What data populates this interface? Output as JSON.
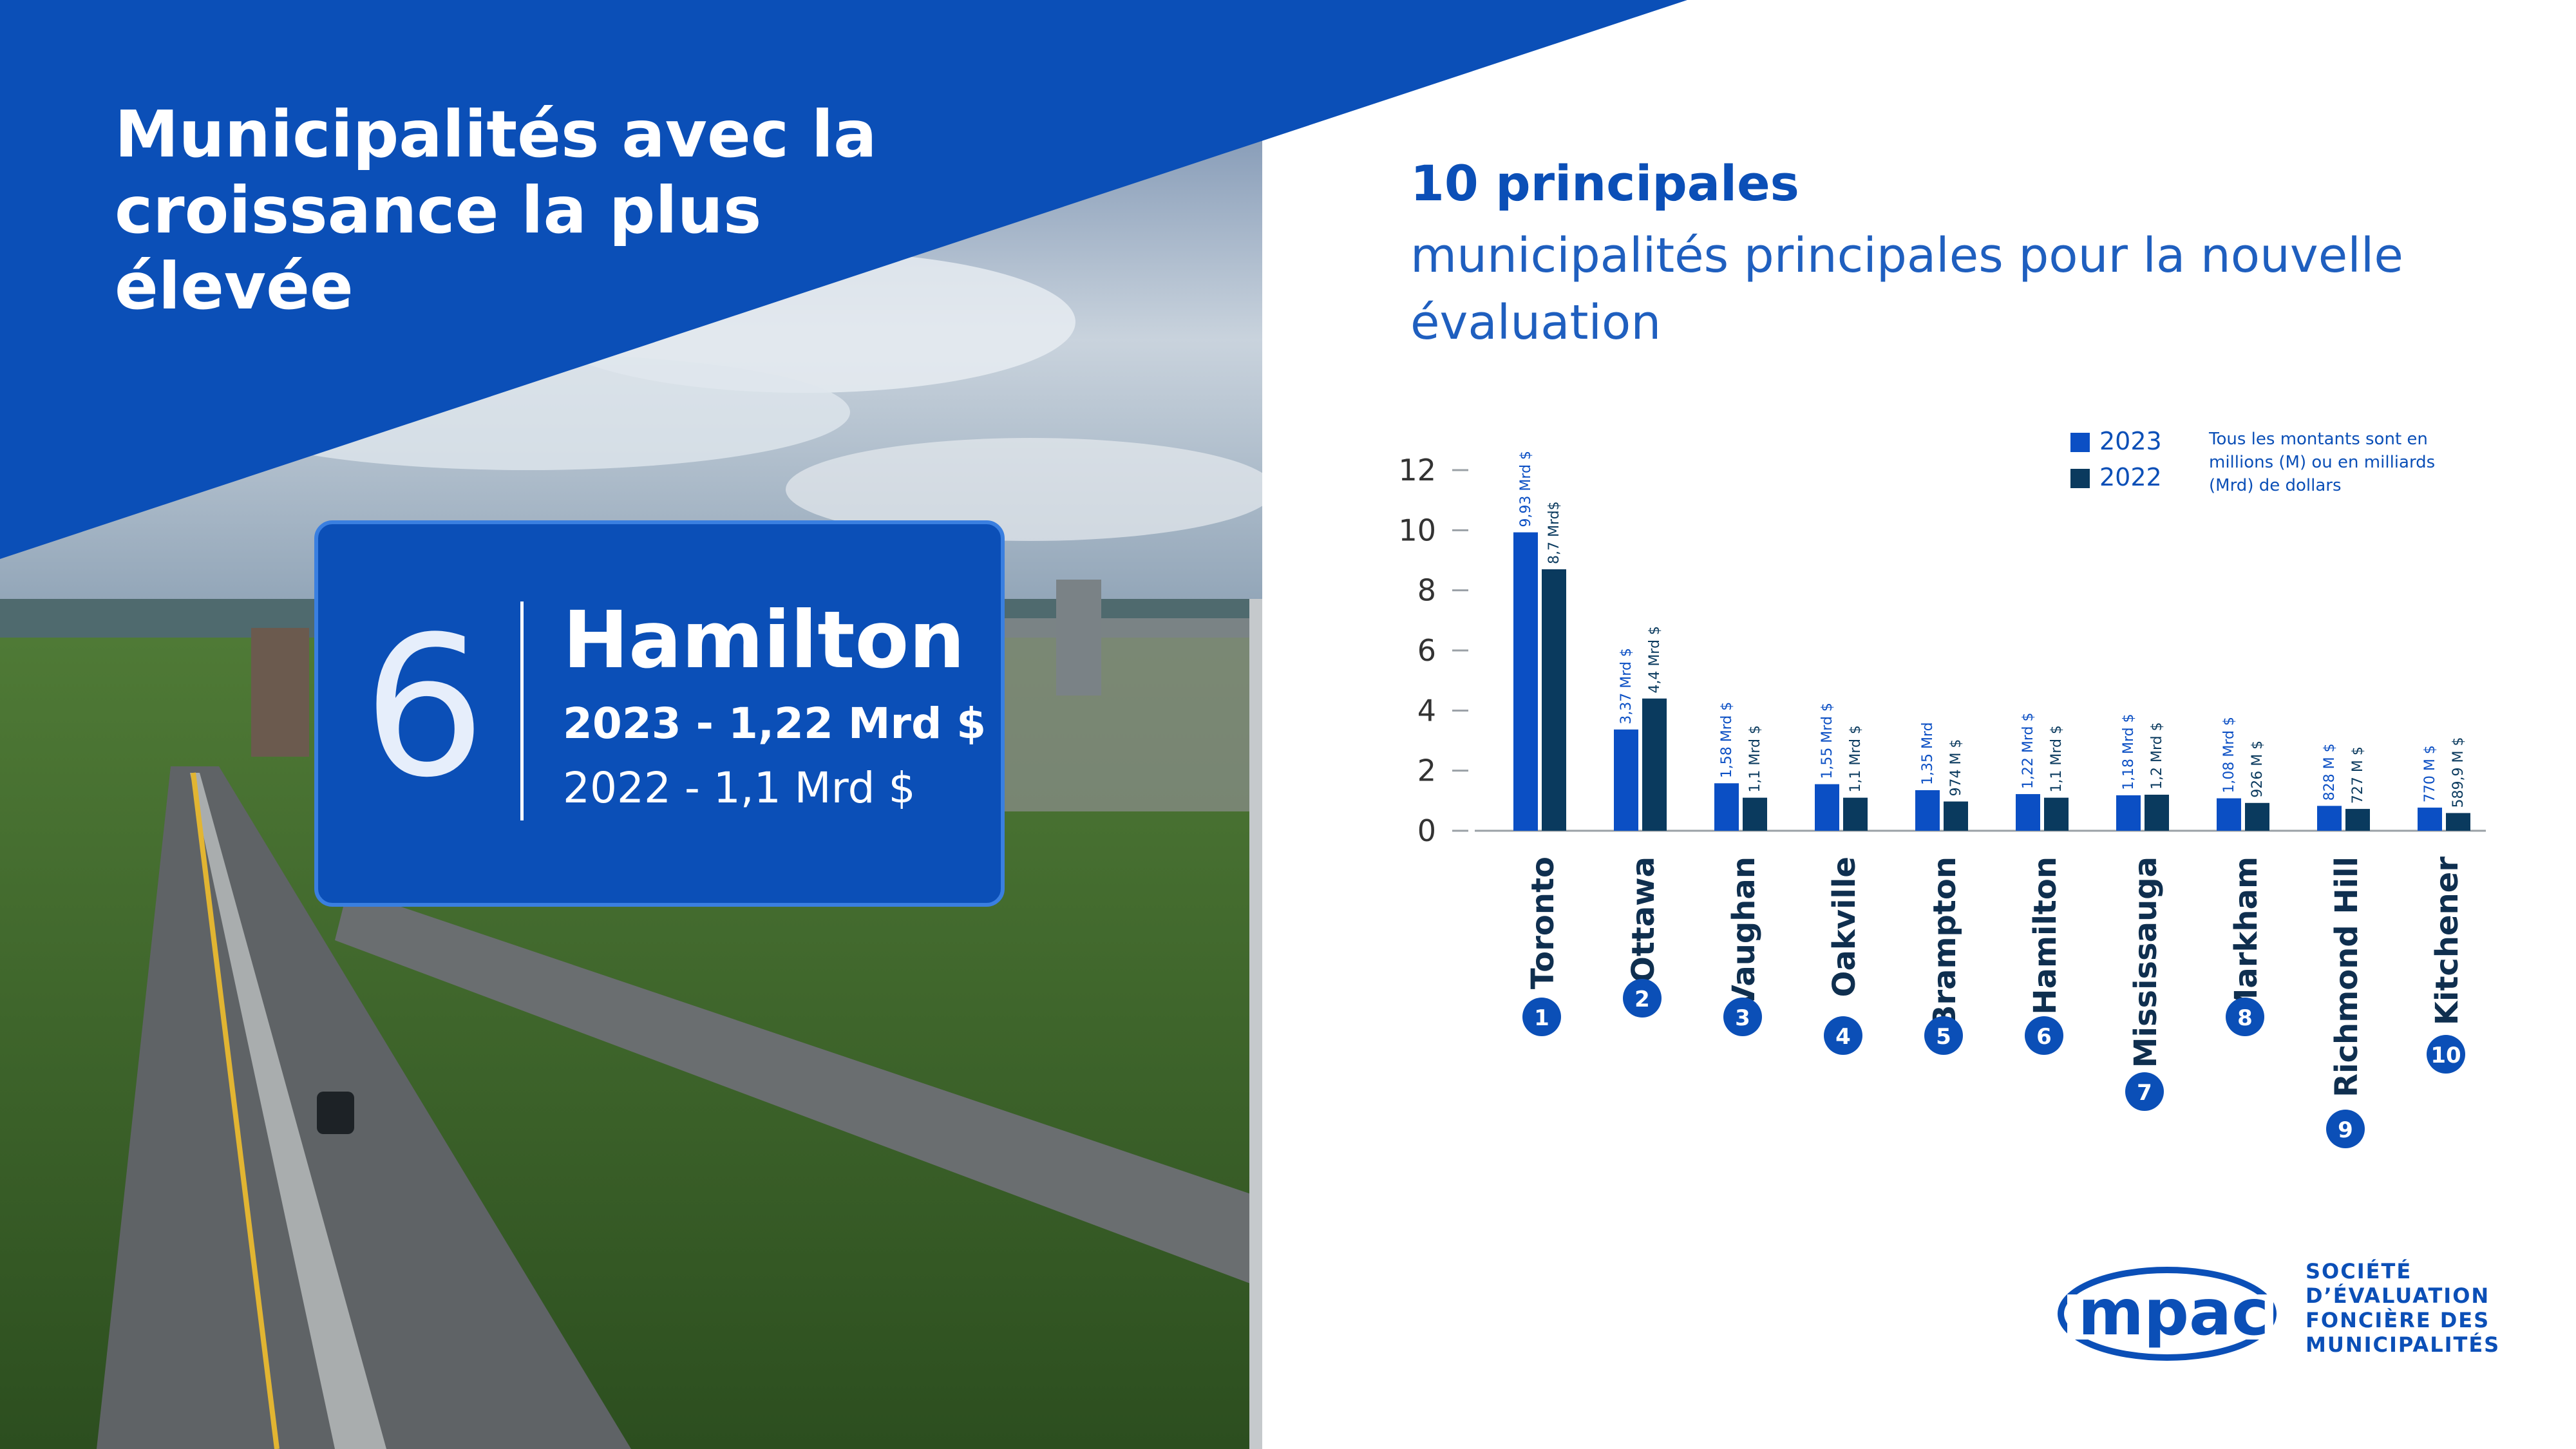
{
  "banner": {
    "title": "Municipalités avec la croissance la plus élevée"
  },
  "sign": {
    "rank": "6",
    "city": "Hamilton",
    "line_2023": "2023 - 1,22 Mrd $",
    "line_2022": "2022 - 1,1 Mrd $"
  },
  "heading": {
    "bold": "10 principales",
    "subtitle": "municipalités principales pour la nouvelle évaluation"
  },
  "legend": {
    "items": [
      "2023",
      "2022"
    ],
    "note": [
      "Tous les montants sont en",
      "millions (M) ou en milliards",
      "(Mrd) de dollars"
    ]
  },
  "colors": {
    "primary": "#0b4fb7",
    "series_2023": "#0b4fc4",
    "series_2022": "#0a3a5e",
    "white": "#ffffff"
  },
  "logo": {
    "name": "mpac",
    "text": [
      "SOCIÉTÉ",
      "D’ÉVALUATION",
      "FONCIÈRE DES",
      "MUNICIPALITÉS"
    ]
  },
  "chart_data": {
    "type": "bar",
    "categories": [
      "Toronto",
      "Ottawa",
      "Vaughan",
      "Oakville",
      "Brampton",
      "Hamilton",
      "Mississauga",
      "Markham",
      "Richmond Hill",
      "Kitchener"
    ],
    "ranks": [
      "1",
      "2",
      "3",
      "4",
      "5",
      "6",
      "7",
      "8",
      "9",
      "10"
    ],
    "series": [
      {
        "name": "2023",
        "values": [
          9.93,
          3.37,
          1.58,
          1.55,
          1.35,
          1.22,
          1.18,
          1.08,
          0.828,
          0.77
        ],
        "labels": [
          "9,93 Mrd $",
          "3,37 Mrd $",
          "1,58 Mrd $",
          "1,55 Mrd $",
          "1,35 Mrd",
          "1,22 Mrd $",
          "1,18 Mrd $",
          "1,08 Mrd $",
          "828 M $",
          "770 M $"
        ]
      },
      {
        "name": "2022",
        "values": [
          8.7,
          4.4,
          1.1,
          1.1,
          0.974,
          1.1,
          1.2,
          0.926,
          0.727,
          0.5899
        ],
        "labels": [
          "8,7 Mrd$",
          "4,4 Mrd $",
          "1,1 Mrd $",
          "1,1 Mrd $",
          "974 M $",
          "1,1 Mrd $",
          "1,2 Mrd $",
          "926 M $",
          "727 M $",
          "589,9 M $"
        ]
      }
    ],
    "yticks": [
      "0",
      "2",
      "4",
      "6",
      "8",
      "10",
      "12"
    ],
    "ylim": [
      0,
      12
    ],
    "xlabel": "",
    "ylabel": "",
    "grid": false,
    "legend_position": "top-right"
  }
}
